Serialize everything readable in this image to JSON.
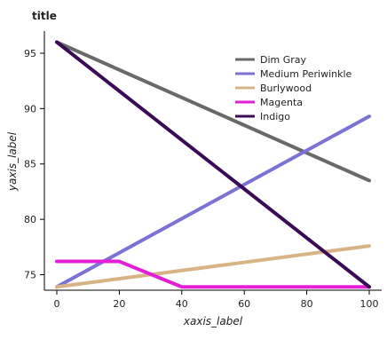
{
  "chart_data": {
    "type": "line",
    "title": "title",
    "xlabel": "xaxis_label",
    "ylabel": "yaxis_label",
    "xlim": [
      0,
      100
    ],
    "ylim": [
      73.6,
      97
    ],
    "x_ticks": [
      0,
      20,
      40,
      60,
      80,
      100
    ],
    "y_ticks": [
      75,
      80,
      85,
      90,
      95
    ],
    "grid": false,
    "legend_position": "top-right",
    "series": [
      {
        "name": "Dim Gray",
        "color": "#696969",
        "x": [
          0,
          100
        ],
        "y": [
          96,
          83.5
        ]
      },
      {
        "name": "Medium Periwinkle",
        "color": "#7b72d6",
        "x": [
          0,
          100
        ],
        "y": [
          73.9,
          89.3
        ]
      },
      {
        "name": "Burlywood",
        "color": "#d8b386",
        "x": [
          0,
          100
        ],
        "y": [
          73.9,
          77.6
        ]
      },
      {
        "name": "Magenta",
        "color": "#e21fd6",
        "x": [
          0,
          20,
          40,
          100
        ],
        "y": [
          76.2,
          76.2,
          73.9,
          73.9
        ]
      },
      {
        "name": "Indigo",
        "color": "#3a0a57",
        "x": [
          0,
          100
        ],
        "y": [
          96,
          73.9
        ]
      }
    ]
  }
}
